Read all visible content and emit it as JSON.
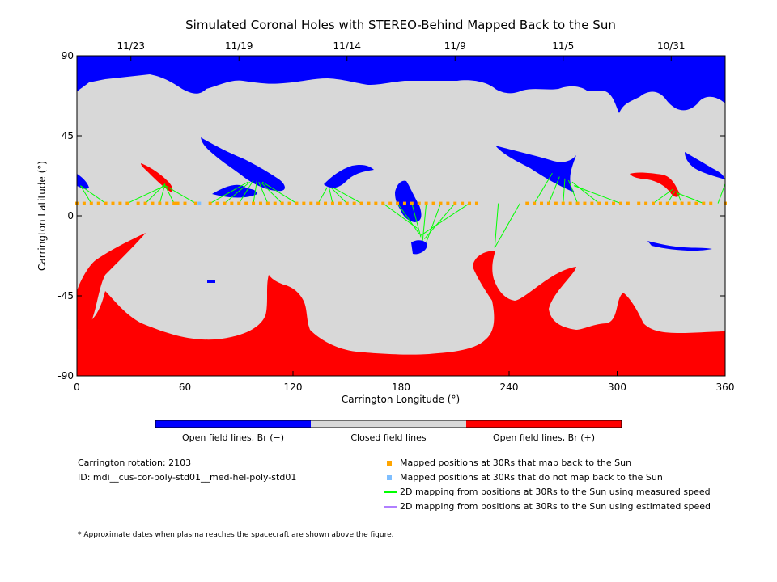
{
  "chart_data": {
    "type": "map",
    "title": "Simulated Coronal Holes with STEREO-Behind Mapped Back to the Sun",
    "xlabel": "Carrington Longitude (°)",
    "ylabel": "Carrington Latitude (°)",
    "xlim": [
      0,
      360
    ],
    "ylim": [
      -90,
      90
    ],
    "x_ticks": [
      "0",
      "60",
      "120",
      "180",
      "240",
      "300",
      "360"
    ],
    "y_ticks": [
      "90",
      "45",
      "0",
      "-45",
      "-90"
    ],
    "top_axis_dates": [
      {
        "label": "11/23",
        "lon": 30
      },
      {
        "label": "11/19",
        "lon": 90
      },
      {
        "label": "11/14",
        "lon": 150
      },
      {
        "label": "11/9",
        "lon": 210
      },
      {
        "label": "11/5",
        "lon": 270
      },
      {
        "label": "10/31",
        "lon": 330
      }
    ],
    "colors": {
      "open_negative": "#0000ff",
      "closed": "#d8d8d8",
      "open_positive": "#ff0000",
      "mapped_point": "#ffa500",
      "unmapped_point": "#7fbfff",
      "measured_line": "#00ff00",
      "estimated_line": "#b07fff"
    },
    "colorbar": {
      "labels": [
        "Open field lines, Br (−)",
        "Closed field lines",
        "Open field lines, Br (+)"
      ]
    },
    "spacecraft_lat": 7,
    "mapped_lons": [
      0,
      4,
      8,
      12,
      16,
      20,
      24,
      28,
      34,
      38,
      42,
      46,
      50,
      54,
      56,
      60,
      66,
      74,
      78,
      82,
      86,
      90,
      94,
      98,
      102,
      106,
      110,
      114,
      118,
      122,
      126,
      130,
      134,
      138,
      142,
      146,
      150,
      154,
      158,
      162,
      166,
      170,
      174,
      178,
      182,
      186,
      190,
      194,
      198,
      202,
      206,
      210,
      214,
      218,
      222,
      250,
      254,
      258,
      262,
      266,
      270,
      274,
      278,
      282,
      286,
      290,
      294,
      298,
      302,
      306,
      312,
      316,
      320,
      324,
      328,
      332,
      336,
      340,
      344,
      348,
      352,
      360
    ],
    "unmapped_lons": [
      68
    ],
    "mappings": [
      {
        "from": 8,
        "to": [
          2,
          17
        ]
      },
      {
        "from": 16,
        "to": [
          2,
          17
        ]
      },
      {
        "from": 28,
        "to": [
          49,
          17
        ]
      },
      {
        "from": 38,
        "to": [
          49,
          18
        ]
      },
      {
        "from": 46,
        "to": [
          49,
          18
        ]
      },
      {
        "from": 54,
        "to": [
          49,
          17
        ]
      },
      {
        "from": 66,
        "to": [
          49,
          17
        ]
      },
      {
        "from": 74,
        "to": [
          95,
          19
        ]
      },
      {
        "from": 82,
        "to": [
          96,
          19
        ]
      },
      {
        "from": 90,
        "to": [
          98,
          20
        ]
      },
      {
        "from": 98,
        "to": [
          100,
          20
        ]
      },
      {
        "from": 106,
        "to": [
          101,
          19
        ]
      },
      {
        "from": 114,
        "to": [
          102,
          19
        ]
      },
      {
        "from": 122,
        "to": [
          103,
          19
        ]
      },
      {
        "from": 134,
        "to": [
          139,
          16
        ]
      },
      {
        "from": 142,
        "to": [
          140,
          16
        ]
      },
      {
        "from": 150,
        "to": [
          141,
          16
        ]
      },
      {
        "from": 158,
        "to": [
          142,
          16
        ]
      },
      {
        "from": 170,
        "to": [
          189,
          -7
        ]
      },
      {
        "from": 178,
        "to": [
          190,
          -10
        ]
      },
      {
        "from": 186,
        "to": [
          191,
          -12
        ]
      },
      {
        "from": 194,
        "to": [
          192,
          -14
        ]
      },
      {
        "from": 202,
        "to": [
          194,
          -15
        ]
      },
      {
        "from": 210,
        "to": [
          193,
          -13
        ]
      },
      {
        "from": 218,
        "to": [
          191,
          -11
        ]
      },
      {
        "from": 234,
        "to": [
          232,
          -18
        ]
      },
      {
        "from": 246,
        "to": [
          232,
          -18
        ]
      },
      {
        "from": 254,
        "to": [
          264,
          24
        ]
      },
      {
        "from": 262,
        "to": [
          268,
          22
        ]
      },
      {
        "from": 270,
        "to": [
          271,
          21
        ]
      },
      {
        "from": 278,
        "to": [
          273,
          20
        ]
      },
      {
        "from": 290,
        "to": [
          275,
          19
        ]
      },
      {
        "from": 302,
        "to": [
          276,
          17
        ]
      },
      {
        "from": 320,
        "to": [
          331,
          15
        ]
      },
      {
        "from": 328,
        "to": [
          332,
          14
        ]
      },
      {
        "from": 336,
        "to": [
          333,
          14
        ]
      },
      {
        "from": 348,
        "to": [
          333,
          13
        ]
      },
      {
        "from": 356,
        "to": [
          360,
          18
        ]
      }
    ]
  },
  "info": {
    "rotation": "Carrington rotation: 2103",
    "id": "ID: mdi__cus-cor-poly-std01__med-hel-poly-std01"
  },
  "legend": [
    {
      "label": "Mapped positions at 30Rs that map back to the Sun",
      "kind": "square",
      "color": "#ffa500"
    },
    {
      "label": "Mapped positions at 30Rs that do not map back to the Sun",
      "kind": "square",
      "color": "#7fbfff"
    },
    {
      "label": "2D mapping from positions at 30Rs to the Sun using measured speed",
      "kind": "line",
      "color": "#00ff00"
    },
    {
      "label": "2D mapping from positions at 30Rs to the Sun using estimated speed",
      "kind": "line",
      "color": "#b07fff"
    }
  ],
  "footnote": "* Approximate dates when plasma reaches the spacecraft are shown above the figure."
}
